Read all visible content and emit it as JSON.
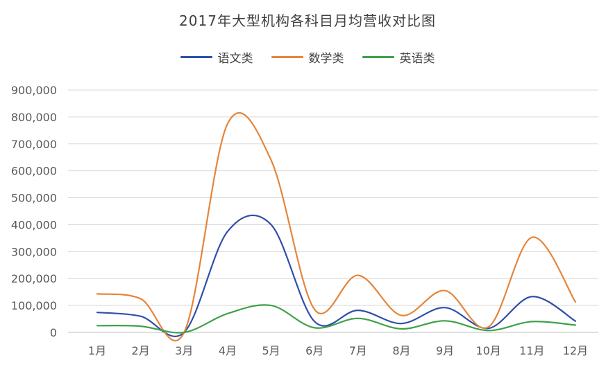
{
  "chart_data": {
    "type": "line",
    "title": "2017年大型机构各科目月均营收对比图",
    "categories": [
      "1月",
      "2月",
      "3月",
      "4月",
      "5月",
      "6月",
      "7月",
      "8月",
      "9月",
      "10月",
      "11月",
      "12月"
    ],
    "ylim": [
      0,
      900000
    ],
    "y_ticks": [
      "0",
      "100,000",
      "200,000",
      "300,000",
      "400,000",
      "500,000",
      "600,000",
      "700,000",
      "800,000",
      "900,000"
    ],
    "grid": true,
    "legend_position": "top",
    "smooth": true,
    "series": [
      {
        "name": "语文类",
        "color": "#2e4eaa",
        "values": [
          74000,
          60000,
          0,
          375000,
          400000,
          40000,
          82000,
          33000,
          92000,
          15000,
          133000,
          42000
        ]
      },
      {
        "name": "数学类",
        "color": "#e4853b",
        "values": [
          143000,
          125000,
          0,
          775000,
          640000,
          85000,
          212000,
          63000,
          155000,
          20000,
          353000,
          113000
        ]
      },
      {
        "name": "英语类",
        "color": "#3ea048",
        "values": [
          25000,
          23000,
          0,
          70000,
          100000,
          17000,
          52000,
          13000,
          43000,
          7000,
          40000,
          27000
        ]
      }
    ]
  }
}
